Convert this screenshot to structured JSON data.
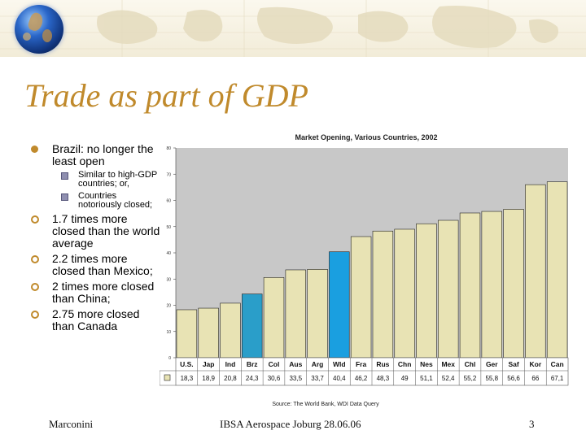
{
  "slide": {
    "title": "Trade as part of GDP",
    "bullets": [
      {
        "level": 1,
        "text": "Brazil: no longer the least open"
      },
      {
        "level": 2,
        "text": "Similar to high-GDP countries; or,"
      },
      {
        "level": 2,
        "text": "Countries notoriously closed;"
      },
      {
        "level": 1,
        "text": "1.7 times more closed than the world average"
      },
      {
        "level": 1,
        "text": "2.2 times more closed than Mexico;"
      },
      {
        "level": 1,
        "text": "2 times more closed than China;"
      },
      {
        "level": 1,
        "text": "2.75 more closed than Canada"
      }
    ],
    "source": "Source: The World Bank, WDI Data Query",
    "footer": {
      "left": "Marconini",
      "center": "IBSA Aerospace Joburg 28.06.06",
      "right": "3"
    }
  },
  "chart_data": {
    "type": "bar",
    "title": "Market Opening, Various Countries, 2002",
    "categories": [
      "U.S.",
      "Jap",
      "Ind",
      "Brz",
      "Col",
      "Aus",
      "Arg",
      "Wld",
      "Fra",
      "Rus",
      "Chn",
      "Nes",
      "Mex",
      "Chl",
      "Ger",
      "Saf",
      "Kor",
      "Can"
    ],
    "values": [
      18.3,
      18.9,
      20.8,
      24.3,
      30.6,
      33.5,
      33.7,
      40.4,
      46.2,
      48.3,
      49,
      51.1,
      52.4,
      55.2,
      55.8,
      56.6,
      66,
      67.1
    ],
    "value_labels": [
      "18,3",
      "18,9",
      "20,8",
      "24,3",
      "30,6",
      "33,5",
      "33,7",
      "40,4",
      "46,2",
      "48,3",
      "49",
      "51,1",
      "52,4",
      "55,2",
      "55,8",
      "56,6",
      "66",
      "67,1"
    ],
    "yticks": [
      0,
      10,
      20,
      30,
      40,
      50,
      60,
      70,
      80
    ],
    "ylim": [
      0,
      80
    ],
    "highlight": {
      "Brz": "#2a9ec9",
      "Wld": "#1a9fe0"
    },
    "colors": {
      "bar": "#e8e3b4",
      "bar_border": "#222222",
      "plot_bg": "#c8c8c8"
    }
  }
}
